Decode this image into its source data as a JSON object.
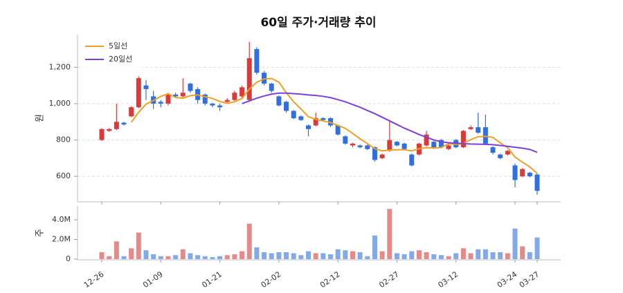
{
  "chart_data": {
    "type": "candlestick",
    "title": "60일 주가·거래량 추이",
    "categories": [
      "12-26",
      null,
      null,
      null,
      null,
      null,
      null,
      null,
      "01-09",
      null,
      null,
      null,
      null,
      null,
      null,
      null,
      "01-21",
      null,
      null,
      null,
      null,
      null,
      null,
      null,
      "02-02",
      null,
      null,
      null,
      null,
      null,
      null,
      null,
      "02-12",
      null,
      null,
      null,
      null,
      null,
      null,
      null,
      "02-27",
      null,
      null,
      null,
      null,
      null,
      null,
      null,
      "03-12",
      null,
      null,
      null,
      null,
      null,
      null,
      null,
      "03-24",
      null,
      null,
      "03-27"
    ],
    "open": [
      800,
      850,
      860,
      895,
      930,
      980,
      1100,
      1040,
      1010,
      1000,
      1050,
      1040,
      1110,
      1080,
      1050,
      1000,
      990,
      1010,
      1020,
      1040,
      1020,
      1300,
      1170,
      1110,
      1040,
      1010,
      960,
      930,
      880,
      880,
      920,
      920,
      880,
      820,
      770,
      770,
      770,
      760,
      700,
      740,
      790,
      780,
      720,
      720,
      770,
      790,
      800,
      750,
      800,
      760,
      860,
      870,
      870,
      760,
      720,
      720,
      660,
      600,
      620,
      610
    ],
    "high": [
      865,
      865,
      1000,
      900,
      985,
      1150,
      1130,
      1070,
      1020,
      1060,
      1060,
      1140,
      1115,
      1090,
      1055,
      1005,
      1000,
      1030,
      1070,
      1100,
      1340,
      1310,
      1180,
      1115,
      1045,
      1015,
      965,
      935,
      885,
      950,
      925,
      925,
      885,
      825,
      785,
      775,
      775,
      765,
      725,
      910,
      795,
      785,
      725,
      785,
      850,
      795,
      805,
      775,
      805,
      855,
      880,
      950,
      940,
      765,
      725,
      745,
      670,
      645,
      625,
      615
    ],
    "low": [
      795,
      845,
      855,
      880,
      925,
      975,
      1020,
      970,
      980,
      990,
      1030,
      1035,
      1060,
      1000,
      990,
      980,
      960,
      1000,
      1015,
      1030,
      1010,
      1160,
      1100,
      1060,
      985,
      950,
      915,
      905,
      820,
      875,
      905,
      870,
      825,
      775,
      760,
      755,
      745,
      680,
      695,
      735,
      765,
      745,
      655,
      715,
      765,
      750,
      755,
      745,
      755,
      755,
      855,
      835,
      775,
      720,
      695,
      715,
      540,
      595,
      595,
      500
    ],
    "close": [
      860,
      860,
      900,
      885,
      980,
      1140,
      1080,
      1000,
      1000,
      1050,
      1040,
      1060,
      1070,
      1020,
      1000,
      990,
      980,
      1020,
      1060,
      1090,
      1250,
      1170,
      1110,
      1070,
      990,
      960,
      920,
      910,
      860,
      920,
      910,
      880,
      830,
      780,
      780,
      760,
      750,
      690,
      720,
      800,
      770,
      750,
      660,
      780,
      830,
      760,
      760,
      770,
      760,
      850,
      870,
      840,
      780,
      730,
      700,
      740,
      580,
      640,
      600,
      520
    ],
    "up_color": "#d93a3a",
    "down_color": "#2f6fe0",
    "ylabel": "원",
    "ylim": [
      460,
      1380
    ],
    "yticks": [
      600,
      800,
      {
        "value": 1000,
        "label": "1,000"
      },
      {
        "value": 1200,
        "label": "1,200"
      }
    ],
    "grid": true,
    "legend": "upper left",
    "lines": [
      {
        "name": "5일선",
        "color": "#f0a020",
        "values": [
          null,
          null,
          null,
          null,
          897,
          953,
          997,
          1017,
          1040,
          1054,
          1034,
          1030,
          1044,
          1048,
          1038,
          1028,
          1012,
          1002,
          1010,
          1028,
          1080,
          1118,
          1136,
          1138,
          1118,
          1060,
          1010,
          970,
          928,
          914,
          904,
          896,
          880,
          864,
          836,
          806,
          780,
          752,
          740,
          744,
          746,
          746,
          740,
          752,
          758,
          756,
          758,
          780,
          776,
          780,
          802,
          818,
          820,
          814,
          784,
          758,
          706,
          678,
          652,
          616
        ]
      },
      {
        "name": "20일선",
        "color": "#7b3fe0",
        "values": [
          null,
          null,
          null,
          null,
          null,
          null,
          null,
          null,
          null,
          null,
          null,
          null,
          null,
          null,
          null,
          null,
          null,
          null,
          null,
          1000,
          1015,
          1030,
          1042,
          1052,
          1058,
          1058,
          1055,
          1052,
          1048,
          1045,
          1040,
          1033,
          1022,
          1010,
          995,
          980,
          962,
          945,
          925,
          905,
          885,
          865,
          848,
          830,
          815,
          800,
          790,
          785,
          782,
          780,
          778,
          777,
          776,
          774,
          770,
          765,
          760,
          755,
          748,
          732
        ]
      }
    ],
    "volume": {
      "ylabel": "주",
      "ylim": [
        0,
        5400000
      ],
      "yticks": [
        0,
        {
          "value": 2000000,
          "label": "2.0M"
        },
        {
          "value": 4000000,
          "label": "4.0M"
        }
      ],
      "values": [
        700000,
        300000,
        1800000,
        300000,
        1100000,
        2700000,
        900000,
        500000,
        300000,
        300000,
        400000,
        1000000,
        600000,
        400000,
        300000,
        200000,
        300000,
        400000,
        500000,
        800000,
        3600000,
        1200000,
        700000,
        600000,
        700000,
        700000,
        600000,
        400000,
        800000,
        600000,
        600000,
        500000,
        1000000,
        900000,
        800000,
        700000,
        300000,
        2400000,
        800000,
        5100000,
        600000,
        500000,
        800000,
        900000,
        700000,
        500000,
        400000,
        300000,
        600000,
        1100000,
        600000,
        1000000,
        1000000,
        700000,
        700000,
        600000,
        3100000,
        1300000,
        700000,
        2200000
      ]
    }
  }
}
